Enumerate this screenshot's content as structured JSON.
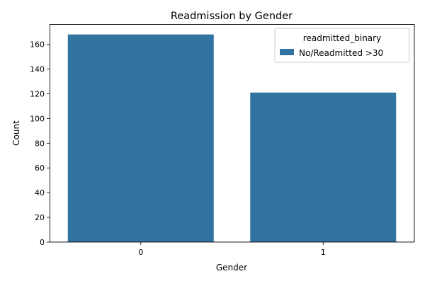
{
  "chart_data": {
    "type": "bar",
    "title": "Readmission by Gender",
    "xlabel": "Gender",
    "ylabel": "Count",
    "categories": [
      "0",
      "1"
    ],
    "series": [
      {
        "name": "No/Readmitted >30",
        "values": [
          168,
          121
        ],
        "color": "#3274a1"
      }
    ],
    "ylim": [
      0,
      176.4
    ],
    "yticks": [
      0,
      20,
      40,
      60,
      80,
      100,
      120,
      140,
      160
    ],
    "legend": {
      "title": "readmitted_binary",
      "placement": "top-right"
    },
    "grid": false
  }
}
